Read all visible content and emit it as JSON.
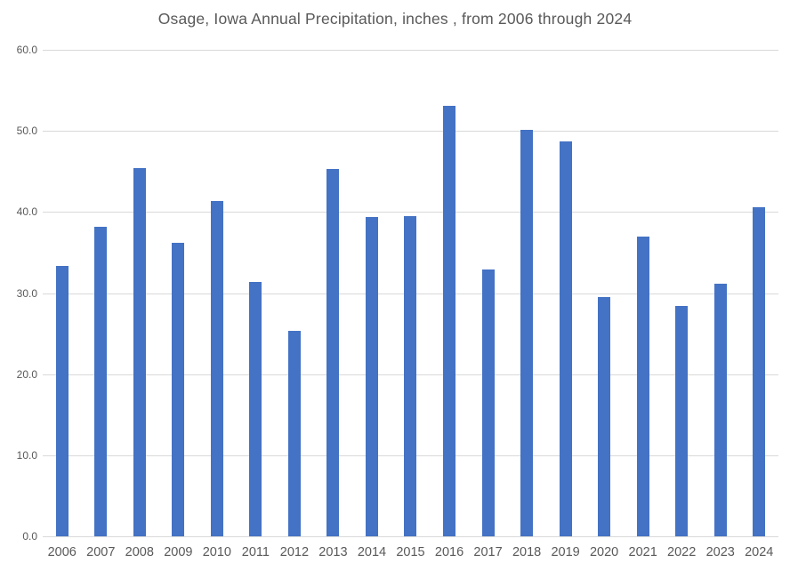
{
  "chart_data": {
    "type": "bar",
    "title": "Osage, Iowa Annual Precipitation, inches , from 2006 through 2024",
    "categories": [
      "2006",
      "2007",
      "2008",
      "2009",
      "2010",
      "2011",
      "2012",
      "2013",
      "2014",
      "2015",
      "2016",
      "2017",
      "2018",
      "2019",
      "2020",
      "2021",
      "2022",
      "2023",
      "2024"
    ],
    "values": [
      33.3,
      38.2,
      45.4,
      36.2,
      41.3,
      31.4,
      25.3,
      45.3,
      39.4,
      39.5,
      53.1,
      32.9,
      50.1,
      48.7,
      29.5,
      37.0,
      28.4,
      31.1,
      40.6
    ],
    "xlabel": "",
    "ylabel": "",
    "ylim": [
      0,
      60
    ],
    "ytick_step": 10,
    "ytick_labels": [
      "0.0",
      "10.0",
      "20.0",
      "30.0",
      "40.0",
      "50.0",
      "60.0"
    ],
    "grid": true,
    "legend_position": "none",
    "bar_color": "#4472C4",
    "gridline_color": "#D9D9D9",
    "text_color": "#595959",
    "background_color": "#FFFFFF"
  }
}
